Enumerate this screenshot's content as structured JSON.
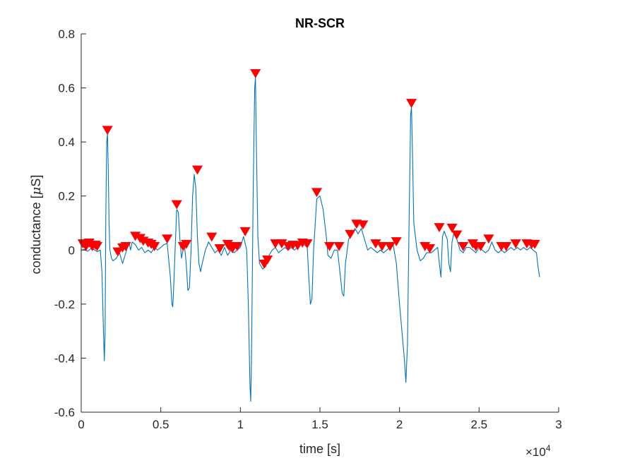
{
  "chart_data": {
    "type": "line",
    "title": "NR-SCR",
    "xlabel": "time [s]",
    "ylabel_prefix": "conductance [",
    "ylabel_mu": "μ",
    "ylabel_suffix": "S]",
    "x_multiplier": {
      "base": "×10",
      "exponent": "4"
    },
    "xlim": [
      0,
      3
    ],
    "ylim": [
      -0.6,
      0.8
    ],
    "x_ticks": [
      {
        "value": 0,
        "label": "0"
      },
      {
        "value": 0.5,
        "label": "0.5"
      },
      {
        "value": 1,
        "label": "1"
      },
      {
        "value": 1.5,
        "label": "1.5"
      },
      {
        "value": 2,
        "label": "2"
      },
      {
        "value": 2.5,
        "label": "2.5"
      },
      {
        "value": 3,
        "label": "3"
      }
    ],
    "y_ticks": [
      {
        "value": 0.8,
        "label": "0.8"
      },
      {
        "value": 0.6,
        "label": "0.6"
      },
      {
        "value": 0.4,
        "label": "0.4"
      },
      {
        "value": 0.2,
        "label": "0.2"
      },
      {
        "value": 0,
        "label": "0"
      },
      {
        "value": -0.2,
        "label": "-0.2"
      },
      {
        "value": -0.4,
        "label": "-0.4"
      },
      {
        "value": -0.6,
        "label": "-0.6"
      }
    ],
    "grid": false,
    "colors": {
      "signal": "#0072BD",
      "markers": "#FF0000",
      "axes": "#262626"
    },
    "series": [
      {
        "values": [
          [
            0.0,
            0.0
          ],
          [
            0.02,
            0.002
          ],
          [
            0.04,
            -0.005
          ],
          [
            0.06,
            0.005
          ],
          [
            0.08,
            0.002
          ],
          [
            0.1,
            -0.006
          ],
          [
            0.12,
            0.0
          ],
          [
            0.13,
            -0.08
          ],
          [
            0.14,
            -0.3
          ],
          [
            0.145,
            -0.41
          ],
          [
            0.15,
            -0.3
          ],
          [
            0.155,
            0.15
          ],
          [
            0.16,
            0.4
          ],
          [
            0.165,
            0.43
          ],
          [
            0.17,
            0.3
          ],
          [
            0.175,
            0.1
          ],
          [
            0.18,
            0.0
          ],
          [
            0.19,
            -0.03
          ],
          [
            0.2,
            -0.04
          ],
          [
            0.22,
            -0.03
          ],
          [
            0.24,
            -0.01
          ],
          [
            0.26,
            -0.05
          ],
          [
            0.28,
            -0.01
          ],
          [
            0.3,
            0.03
          ],
          [
            0.31,
            0.0
          ],
          [
            0.32,
            0.03
          ],
          [
            0.34,
            0.02
          ],
          [
            0.36,
            0.0
          ],
          [
            0.38,
            0.01
          ],
          [
            0.4,
            -0.01
          ],
          [
            0.42,
            0.0
          ],
          [
            0.44,
            -0.01
          ],
          [
            0.46,
            0.01
          ],
          [
            0.48,
            0.0
          ],
          [
            0.5,
            0.01
          ],
          [
            0.52,
            0.02
          ],
          [
            0.54,
            0.025
          ],
          [
            0.56,
            -0.1
          ],
          [
            0.57,
            -0.2
          ],
          [
            0.575,
            -0.21
          ],
          [
            0.58,
            -0.15
          ],
          [
            0.59,
            0.0
          ],
          [
            0.6,
            0.15
          ],
          [
            0.61,
            0.14
          ],
          [
            0.62,
            0.04
          ],
          [
            0.63,
            -0.03
          ],
          [
            0.64,
            0.0
          ],
          [
            0.65,
            0.01
          ],
          [
            0.66,
            -0.05
          ],
          [
            0.67,
            -0.15
          ],
          [
            0.68,
            -0.14
          ],
          [
            0.69,
            0.0
          ],
          [
            0.7,
            0.2
          ],
          [
            0.71,
            0.28
          ],
          [
            0.72,
            0.23
          ],
          [
            0.73,
            0.05
          ],
          [
            0.74,
            -0.05
          ],
          [
            0.75,
            -0.08
          ],
          [
            0.76,
            -0.05
          ],
          [
            0.78,
            0.0
          ],
          [
            0.8,
            0.03
          ],
          [
            0.82,
            0.01
          ],
          [
            0.84,
            -0.01
          ],
          [
            0.86,
            0.0
          ],
          [
            0.88,
            -0.02
          ],
          [
            0.9,
            0.01
          ],
          [
            0.92,
            -0.02
          ],
          [
            0.94,
            0.0
          ],
          [
            0.96,
            -0.01
          ],
          [
            0.98,
            0.0
          ],
          [
            1.0,
            0.01
          ],
          [
            1.02,
            0.05
          ],
          [
            1.04,
            0.0
          ],
          [
            1.05,
            -0.2
          ],
          [
            1.06,
            -0.5
          ],
          [
            1.065,
            -0.56
          ],
          [
            1.07,
            -0.4
          ],
          [
            1.08,
            0.2
          ],
          [
            1.09,
            0.6
          ],
          [
            1.095,
            0.64
          ],
          [
            1.1,
            0.4
          ],
          [
            1.11,
            0.05
          ],
          [
            1.12,
            -0.05
          ],
          [
            1.14,
            -0.07
          ],
          [
            1.16,
            -0.06
          ],
          [
            1.18,
            -0.02
          ],
          [
            1.2,
            0.0
          ],
          [
            1.22,
            0.01
          ],
          [
            1.24,
            -0.01
          ],
          [
            1.26,
            0.0
          ],
          [
            1.28,
            0.01
          ],
          [
            1.3,
            0.0
          ],
          [
            1.32,
            0.01
          ],
          [
            1.34,
            0.0
          ],
          [
            1.36,
            0.01
          ],
          [
            1.38,
            0.02
          ],
          [
            1.4,
            0.02
          ],
          [
            1.42,
            0.01
          ],
          [
            1.43,
            -0.1
          ],
          [
            1.44,
            -0.2
          ],
          [
            1.45,
            -0.18
          ],
          [
            1.46,
            0.0
          ],
          [
            1.48,
            0.19
          ],
          [
            1.5,
            0.2
          ],
          [
            1.52,
            0.15
          ],
          [
            1.54,
            0.05
          ],
          [
            1.55,
            -0.02
          ],
          [
            1.57,
            -0.03
          ],
          [
            1.59,
            0.0
          ],
          [
            1.61,
            0.0
          ],
          [
            1.62,
            -0.05
          ],
          [
            1.64,
            -0.16
          ],
          [
            1.65,
            -0.17
          ],
          [
            1.66,
            -0.05
          ],
          [
            1.68,
            0.04
          ],
          [
            1.7,
            0.06
          ],
          [
            1.72,
            0.08
          ],
          [
            1.74,
            0.06
          ],
          [
            1.76,
            0.08
          ],
          [
            1.78,
            0.04
          ],
          [
            1.8,
            0.0
          ],
          [
            1.82,
            0.01
          ],
          [
            1.84,
            0.0
          ],
          [
            1.86,
            -0.01
          ],
          [
            1.88,
            0.0
          ],
          [
            1.9,
            -0.01
          ],
          [
            1.92,
            0.0
          ],
          [
            1.94,
            0.01
          ],
          [
            1.96,
            0.02
          ],
          [
            1.98,
            -0.05
          ],
          [
            2.0,
            -0.2
          ],
          [
            2.03,
            -0.4
          ],
          [
            2.04,
            -0.49
          ],
          [
            2.05,
            -0.35
          ],
          [
            2.06,
            0.1
          ],
          [
            2.07,
            0.5
          ],
          [
            2.075,
            0.53
          ],
          [
            2.08,
            0.4
          ],
          [
            2.09,
            0.1
          ],
          [
            2.11,
            0.0
          ],
          [
            2.13,
            -0.04
          ],
          [
            2.15,
            -0.03
          ],
          [
            2.17,
            -0.01
          ],
          [
            2.2,
            -0.01
          ],
          [
            2.22,
            0.0
          ],
          [
            2.24,
            0.01
          ],
          [
            2.25,
            -0.05
          ],
          [
            2.26,
            -0.1
          ],
          [
            2.27,
            0.05
          ],
          [
            2.28,
            0.07
          ],
          [
            2.3,
            0.04
          ],
          [
            2.31,
            -0.05
          ],
          [
            2.32,
            -0.08
          ],
          [
            2.33,
            0.03
          ],
          [
            2.34,
            0.06
          ],
          [
            2.36,
            0.04
          ],
          [
            2.38,
            0.0
          ],
          [
            2.4,
            -0.01
          ],
          [
            2.42,
            0.01
          ],
          [
            2.44,
            0.01
          ],
          [
            2.46,
            0.0
          ],
          [
            2.48,
            -0.01
          ],
          [
            2.5,
            0.01
          ],
          [
            2.52,
            0.0
          ],
          [
            2.54,
            -0.01
          ],
          [
            2.56,
            0.0
          ],
          [
            2.58,
            0.03
          ],
          [
            2.6,
            0.0
          ],
          [
            2.62,
            -0.01
          ],
          [
            2.64,
            0.0
          ],
          [
            2.66,
            -0.01
          ],
          [
            2.68,
            0.0
          ],
          [
            2.7,
            0.01
          ],
          [
            2.72,
            0.0
          ],
          [
            2.74,
            0.01
          ],
          [
            2.76,
            0.0
          ],
          [
            2.78,
            0.01
          ],
          [
            2.8,
            0.0
          ],
          [
            2.82,
            0.01
          ],
          [
            2.84,
            0.0
          ],
          [
            2.86,
            -0.01
          ],
          [
            2.87,
            -0.06
          ],
          [
            2.88,
            -0.1
          ]
        ]
      },
      {
        "type": "markers",
        "values": [
          [
            0.01,
            0.01
          ],
          [
            0.03,
            0.0
          ],
          [
            0.05,
            0.013
          ],
          [
            0.07,
            0.0
          ],
          [
            0.09,
            0.005
          ],
          [
            0.1,
            0.0
          ],
          [
            0.165,
            0.43
          ],
          [
            0.23,
            -0.02
          ],
          [
            0.26,
            -0.005
          ],
          [
            0.28,
            0.0
          ],
          [
            0.34,
            0.038
          ],
          [
            0.37,
            0.03
          ],
          [
            0.39,
            0.02
          ],
          [
            0.42,
            0.013
          ],
          [
            0.44,
            0.008
          ],
          [
            0.46,
            0.0
          ],
          [
            0.54,
            0.028
          ],
          [
            0.6,
            0.155
          ],
          [
            0.64,
            0.0
          ],
          [
            0.66,
            0.008
          ],
          [
            0.73,
            0.283
          ],
          [
            0.82,
            0.035
          ],
          [
            0.87,
            -0.008
          ],
          [
            0.92,
            0.008
          ],
          [
            0.93,
            0.0
          ],
          [
            0.95,
            -0.008
          ],
          [
            0.98,
            0.0
          ],
          [
            1.03,
            0.055
          ],
          [
            1.095,
            0.64
          ],
          [
            1.15,
            -0.065
          ],
          [
            1.17,
            -0.05
          ],
          [
            1.22,
            0.01
          ],
          [
            1.26,
            0.01
          ],
          [
            1.3,
            0.0
          ],
          [
            1.33,
            0.005
          ],
          [
            1.36,
            0.003
          ],
          [
            1.39,
            0.013
          ],
          [
            1.42,
            0.01
          ],
          [
            1.48,
            0.2
          ],
          [
            1.56,
            0.0
          ],
          [
            1.62,
            0.0
          ],
          [
            1.69,
            0.045
          ],
          [
            1.73,
            0.083
          ],
          [
            1.77,
            0.08
          ],
          [
            1.85,
            0.01
          ],
          [
            1.89,
            0.0
          ],
          [
            1.94,
            0.0
          ],
          [
            1.98,
            0.018
          ],
          [
            2.075,
            0.53
          ],
          [
            2.16,
            0.0
          ],
          [
            2.19,
            -0.008
          ],
          [
            2.25,
            0.07
          ],
          [
            2.33,
            0.068
          ],
          [
            2.36,
            0.043
          ],
          [
            2.4,
            0.0
          ],
          [
            2.46,
            0.01
          ],
          [
            2.48,
            0.0
          ],
          [
            2.51,
            0.0
          ],
          [
            2.56,
            0.028
          ],
          [
            2.64,
            0.0
          ],
          [
            2.67,
            0.0
          ],
          [
            2.73,
            0.01
          ],
          [
            2.8,
            0.01
          ],
          [
            2.83,
            0.008
          ],
          [
            2.85,
            0.008
          ]
        ]
      }
    ]
  }
}
